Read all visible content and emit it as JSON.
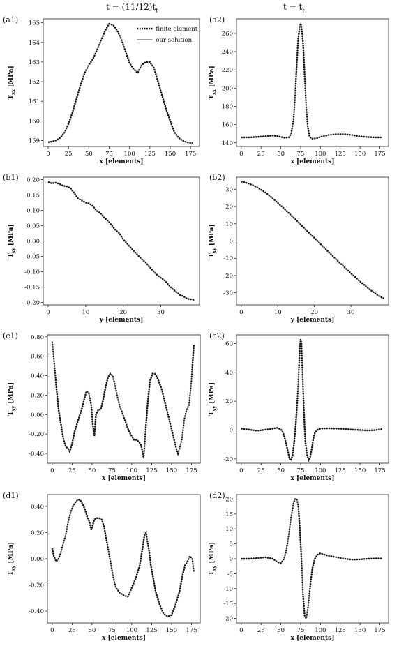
{
  "columns": {
    "left_title": "t = (11/12)t",
    "left_title_sub": "f",
    "right_title": "t = t",
    "right_title_sub": "f"
  },
  "legend": {
    "fe": "finite element",
    "ours": "our solution"
  },
  "colors": {
    "fe": "#111111",
    "ours": "#7a7a7a",
    "axes": "#222222"
  },
  "chart_data": [
    {
      "id": "a1",
      "panel_label": "(a1)",
      "type": "line",
      "xlabel": "x [elements]",
      "ylabel_main": "T",
      "ylabel_sub": "xx",
      "ylabel_unit": "[MPa]",
      "xlim": [
        -6,
        186
      ],
      "ylim": [
        158.7,
        165.2
      ],
      "xticks": [
        0,
        25,
        50,
        75,
        100,
        125,
        150,
        175
      ],
      "yticks": [
        159,
        160,
        161,
        162,
        163,
        164,
        165
      ],
      "legend": true,
      "series": [
        {
          "x": [
            0,
            5,
            10,
            15,
            20,
            25,
            30,
            35,
            40,
            45,
            50,
            55,
            60,
            65,
            70,
            75,
            80,
            85,
            90,
            95,
            100,
            105,
            110,
            115,
            120,
            125,
            130,
            135,
            140,
            145,
            150,
            155,
            160,
            165,
            170,
            175,
            178
          ],
          "y": [
            158.92,
            158.95,
            159.02,
            159.15,
            159.4,
            159.85,
            160.45,
            161.15,
            161.85,
            162.45,
            162.85,
            163.15,
            163.6,
            164.1,
            164.6,
            164.95,
            164.88,
            164.6,
            164.15,
            163.55,
            162.95,
            162.65,
            162.45,
            162.85,
            163.0,
            163.0,
            162.7,
            162.0,
            161.3,
            160.6,
            160.0,
            159.45,
            159.15,
            159.0,
            158.92,
            158.88,
            158.88
          ]
        }
      ]
    },
    {
      "id": "a2",
      "panel_label": "(a2)",
      "type": "line",
      "xlabel": "x [elements]",
      "ylabel_main": "T",
      "ylabel_sub": "xx",
      "ylabel_unit": "[MPa]",
      "xlim": [
        -6,
        186
      ],
      "ylim": [
        136,
        276
      ],
      "xticks": [
        0,
        25,
        50,
        75,
        100,
        125,
        150,
        175
      ],
      "yticks": [
        140,
        160,
        180,
        200,
        220,
        240,
        260
      ],
      "legend": false,
      "series": [
        {
          "x": [
            0,
            10,
            20,
            30,
            40,
            45,
            50,
            55,
            60,
            63,
            66,
            68,
            70,
            72,
            74,
            75,
            76,
            78,
            80,
            82,
            84,
            86,
            88,
            90,
            95,
            100,
            110,
            120,
            130,
            140,
            150,
            160,
            170,
            178
          ],
          "y": [
            146,
            146,
            146.5,
            147.2,
            148,
            147.5,
            146.5,
            145.5,
            146,
            150,
            165,
            190,
            225,
            255,
            268,
            271,
            268,
            250,
            215,
            180,
            158,
            148,
            145,
            144.5,
            145,
            146.5,
            148.5,
            149.5,
            149.5,
            148.5,
            147,
            146.3,
            146,
            146
          ]
        }
      ]
    },
    {
      "id": "b1",
      "panel_label": "(b1)",
      "type": "line",
      "xlabel": "y [elements]",
      "ylabel_main": "T",
      "ylabel_sub": "xy",
      "ylabel_unit": "[MPa]",
      "xlim": [
        -1.3,
        40.3
      ],
      "ylim": [
        -0.208,
        0.208
      ],
      "xticks": [
        0,
        10,
        20,
        30
      ],
      "yticks": [
        0.2,
        0.15,
        0.1,
        0.05,
        0.0,
        -0.05,
        -0.1,
        -0.15,
        -0.2
      ],
      "legend": false,
      "series": [
        {
          "x": [
            0,
            1,
            2,
            3,
            4,
            5,
            6,
            7,
            8,
            9,
            10,
            11,
            12,
            13,
            14,
            15,
            16,
            17,
            18,
            19,
            20,
            21,
            22,
            23,
            24,
            25,
            26,
            27,
            28,
            29,
            30,
            31,
            32,
            33,
            34,
            35,
            36,
            37,
            38,
            39
          ],
          "y": [
            0.192,
            0.188,
            0.19,
            0.186,
            0.18,
            0.178,
            0.172,
            0.155,
            0.138,
            0.132,
            0.125,
            0.122,
            0.112,
            0.098,
            0.09,
            0.075,
            0.065,
            0.05,
            0.035,
            0.025,
            0.005,
            -0.008,
            -0.022,
            -0.035,
            -0.048,
            -0.06,
            -0.07,
            -0.085,
            -0.098,
            -0.11,
            -0.12,
            -0.128,
            -0.142,
            -0.155,
            -0.165,
            -0.175,
            -0.18,
            -0.188,
            -0.19,
            -0.192
          ]
        }
      ]
    },
    {
      "id": "b2",
      "panel_label": "(b2)",
      "type": "line",
      "xlabel": "y [elements]",
      "ylabel_main": "T",
      "ylabel_sub": "xy",
      "ylabel_unit": "[MPa]",
      "xlim": [
        -1.3,
        40.3
      ],
      "ylim": [
        -37,
        37
      ],
      "xticks": [
        0,
        10,
        20,
        30
      ],
      "yticks": [
        30,
        20,
        10,
        0,
        -10,
        -20,
        -30
      ],
      "legend": false,
      "series": [
        {
          "x": [
            0,
            1,
            2,
            3,
            4,
            5,
            6,
            7,
            8,
            9,
            10,
            11,
            12,
            13,
            14,
            15,
            16,
            17,
            18,
            19,
            20,
            21,
            22,
            23,
            24,
            25,
            26,
            27,
            28,
            29,
            30,
            31,
            32,
            33,
            34,
            35,
            36,
            37,
            38,
            39
          ],
          "y": [
            34.5,
            34,
            33.3,
            32.5,
            31.5,
            30.3,
            29,
            27.5,
            25.8,
            24,
            22.1,
            20.2,
            18.2,
            16.2,
            14.2,
            12.2,
            10.1,
            8,
            5.9,
            3.8,
            1.8,
            -0.3,
            -2.4,
            -4.5,
            -6.6,
            -8.6,
            -10.7,
            -12.7,
            -14.7,
            -16.7,
            -18.7,
            -20.6,
            -22.5,
            -24.3,
            -26.1,
            -27.8,
            -29.4,
            -30.9,
            -32.2,
            -33.3
          ]
        }
      ]
    },
    {
      "id": "c1",
      "panel_label": "(c1)",
      "type": "line",
      "xlabel": "x [elements]",
      "ylabel_main": "T",
      "ylabel_sub": "yy",
      "ylabel_unit": "[MPa]",
      "xlim": [
        -6,
        186
      ],
      "ylim": [
        -0.5,
        0.82
      ],
      "xticks": [
        0,
        25,
        50,
        75,
        100,
        125,
        150,
        175
      ],
      "yticks": [
        0.8,
        0.6,
        0.4,
        0.2,
        0.0,
        -0.2,
        -0.4
      ],
      "legend": false,
      "series": [
        {
          "x": [
            0,
            2,
            5,
            8,
            11,
            14,
            17,
            20,
            22,
            25,
            28,
            31,
            34,
            37,
            40,
            43,
            46,
            49,
            51,
            53,
            55,
            58,
            61,
            64,
            67,
            70,
            73,
            76,
            79,
            82,
            85,
            88,
            91,
            94,
            97,
            100,
            103,
            106,
            109,
            112,
            115,
            117,
            120,
            123,
            126,
            129,
            132,
            135,
            138,
            141,
            144,
            147,
            150,
            153,
            156,
            158,
            160,
            163,
            166,
            169,
            172,
            175,
            177,
            178
          ],
          "y": [
            0.75,
            0.58,
            0.3,
            0.05,
            -0.1,
            -0.25,
            -0.33,
            -0.35,
            -0.38,
            -0.3,
            -0.18,
            -0.1,
            -0.02,
            0.05,
            0.15,
            0.24,
            0.22,
            0.1,
            -0.1,
            -0.22,
            0.0,
            0.05,
            0.05,
            0.15,
            0.28,
            0.38,
            0.42,
            0.4,
            0.3,
            0.18,
            0.08,
            0.02,
            -0.05,
            -0.12,
            -0.18,
            -0.22,
            -0.26,
            -0.26,
            -0.28,
            -0.32,
            -0.45,
            -0.2,
            0.12,
            0.35,
            0.42,
            0.42,
            0.38,
            0.32,
            0.25,
            0.15,
            0.05,
            -0.05,
            -0.15,
            -0.25,
            -0.35,
            -0.4,
            -0.35,
            -0.25,
            -0.05,
            0.05,
            0.1,
            0.35,
            0.6,
            0.72
          ]
        }
      ]
    },
    {
      "id": "c2",
      "panel_label": "(c2)",
      "type": "line",
      "xlabel": "x [elements]",
      "ylabel_main": "T",
      "ylabel_sub": "yy",
      "ylabel_unit": "[MPa]",
      "xlim": [
        -6,
        186
      ],
      "ylim": [
        -23,
        66
      ],
      "xticks": [
        0,
        25,
        50,
        75,
        100,
        125,
        150,
        175
      ],
      "yticks": [
        60,
        40,
        20,
        0,
        -20
      ],
      "legend": false,
      "series": [
        {
          "x": [
            0,
            10,
            20,
            30,
            40,
            45,
            50,
            53,
            56,
            59,
            61,
            63,
            65,
            67,
            69,
            71,
            72,
            73,
            74,
            75,
            76,
            77,
            78,
            79,
            80,
            81,
            83,
            85,
            87,
            89,
            91,
            93,
            96,
            100,
            110,
            120,
            130,
            140,
            150,
            160,
            170,
            178
          ],
          "y": [
            1,
            0.3,
            -0.5,
            0.2,
            1,
            1.5,
            0.5,
            -2,
            -8,
            -15,
            -20,
            -21,
            -17,
            -8,
            5,
            22,
            32,
            45,
            57,
            63,
            60,
            45,
            30,
            15,
            2,
            -8,
            -17,
            -21,
            -19,
            -13,
            -6,
            -2,
            0,
            1,
            1.2,
            1,
            0.8,
            0.3,
            0,
            -0.3,
            0,
            0.8
          ]
        }
      ]
    },
    {
      "id": "d1",
      "panel_label": "(d1)",
      "type": "line",
      "xlabel": "x [elements]",
      "ylabel_main": "T",
      "ylabel_sub": "xy",
      "ylabel_unit": "[MPa]",
      "xlim": [
        -6,
        186
      ],
      "ylim": [
        -0.49,
        0.49
      ],
      "xticks": [
        0,
        25,
        50,
        75,
        100,
        125,
        150,
        175
      ],
      "yticks": [
        0.4,
        0.2,
        0.0,
        -0.2,
        -0.4
      ],
      "legend": false,
      "series": [
        {
          "x": [
            0,
            2,
            5,
            8,
            11,
            14,
            17,
            20,
            23,
            26,
            29,
            32,
            35,
            38,
            41,
            44,
            47,
            49,
            51,
            53,
            56,
            59,
            62,
            65,
            68,
            71,
            74,
            77,
            80,
            85,
            90,
            95,
            100,
            105,
            110,
            114,
            116,
            118,
            120,
            122,
            124,
            127,
            130,
            135,
            140,
            145,
            150,
            155,
            160,
            164,
            167,
            170,
            173,
            176,
            178
          ],
          "y": [
            0.08,
            0.02,
            -0.02,
            0.0,
            0.05,
            0.12,
            0.18,
            0.28,
            0.35,
            0.4,
            0.43,
            0.45,
            0.45,
            0.42,
            0.38,
            0.32,
            0.28,
            0.22,
            0.26,
            0.3,
            0.31,
            0.31,
            0.3,
            0.25,
            0.15,
            0.05,
            -0.05,
            -0.15,
            -0.22,
            -0.26,
            -0.28,
            -0.29,
            -0.22,
            -0.15,
            -0.05,
            0.1,
            0.18,
            0.2,
            0.12,
            0.05,
            -0.05,
            -0.15,
            -0.25,
            -0.35,
            -0.42,
            -0.44,
            -0.43,
            -0.35,
            -0.25,
            -0.12,
            -0.05,
            -0.02,
            0.02,
            0.0,
            -0.1
          ]
        }
      ]
    },
    {
      "id": "d2",
      "panel_label": "(d2)",
      "type": "line",
      "xlabel": "x [elements]",
      "ylabel_main": "T",
      "ylabel_sub": "xy",
      "ylabel_unit": "[MPa]",
      "xlim": [
        -6,
        186
      ],
      "ylim": [
        -21.5,
        21.5
      ],
      "xticks": [
        0,
        25,
        50,
        75,
        100,
        125,
        150,
        175
      ],
      "yticks": [
        20,
        15,
        10,
        5,
        0,
        -5,
        -10,
        -15,
        -20
      ],
      "legend": false,
      "series": [
        {
          "x": [
            0,
            10,
            20,
            30,
            40,
            45,
            50,
            54,
            57,
            60,
            63,
            66,
            68,
            70,
            72,
            74,
            76,
            78,
            80,
            82,
            84,
            86,
            88,
            90,
            93,
            96,
            100,
            110,
            120,
            130,
            140,
            150,
            160,
            170,
            178
          ],
          "y": [
            0,
            0,
            0.2,
            0.5,
            0,
            -1,
            -1.5,
            0,
            3,
            8,
            14,
            18.5,
            20,
            20,
            18,
            10,
            0,
            -12,
            -19,
            -20,
            -17,
            -12,
            -7,
            -3,
            0,
            1.3,
            1.8,
            1,
            0.5,
            0,
            -0.3,
            -0.2,
            0,
            0.1,
            0.1
          ]
        }
      ]
    }
  ]
}
